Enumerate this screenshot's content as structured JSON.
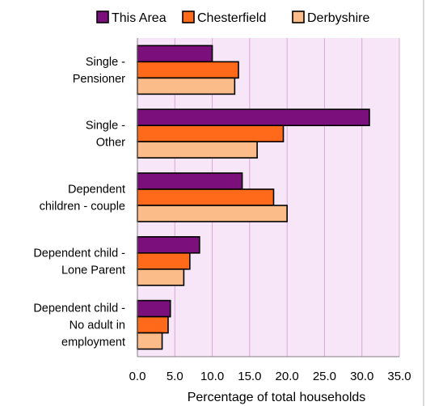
{
  "chart_data": {
    "type": "bar",
    "orientation": "horizontal",
    "categories": [
      [
        "Single -",
        "Pensioner"
      ],
      [
        "Single -",
        "Other"
      ],
      [
        "Dependent",
        "children - couple"
      ],
      [
        "Dependent child -",
        "Lone Parent"
      ],
      [
        "Dependent child -",
        "No adult in",
        "employment"
      ]
    ],
    "series": [
      {
        "name": "This Area",
        "color": "#7b0f7b",
        "values": [
          10.0,
          31.0,
          14.0,
          8.3,
          4.4
        ]
      },
      {
        "name": "Chesterfield",
        "color": "#ff6a1a",
        "values": [
          13.5,
          19.5,
          18.2,
          7.0,
          4.1
        ]
      },
      {
        "name": "Derbyshire",
        "color": "#fbbc8a",
        "values": [
          13.0,
          16.0,
          20.0,
          6.2,
          3.3
        ]
      }
    ],
    "xlabel": "Percentage of total households",
    "xlim": [
      0,
      35
    ],
    "xticks": [
      "0.0",
      "5.0",
      "10.0",
      "15.0",
      "20.0",
      "25.0",
      "30.0",
      "35.0"
    ],
    "grid": true,
    "legend": "top",
    "plot_background": "#f7e6f7",
    "grid_color": "#d9a7d9"
  }
}
